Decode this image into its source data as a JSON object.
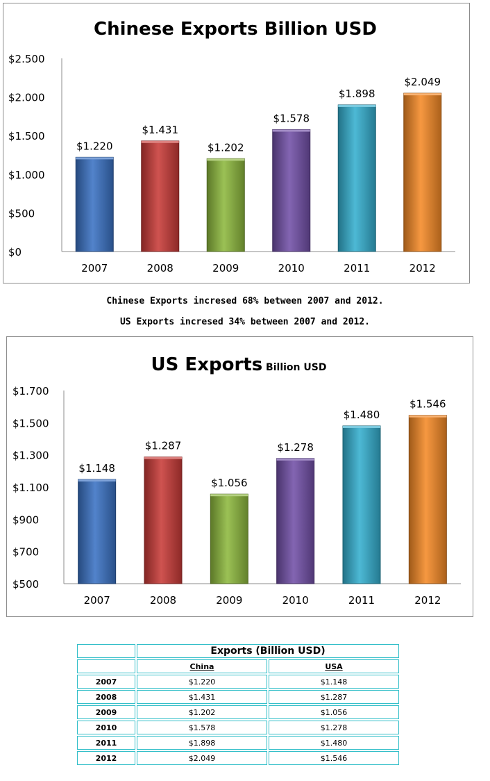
{
  "chart_data": [
    {
      "type": "bar",
      "title": "Chinese Exports Billion USD",
      "title_main": "Chinese Exports Billion USD",
      "title_sub": "",
      "categories": [
        "2007",
        "2008",
        "2009",
        "2010",
        "2011",
        "2012"
      ],
      "values": [
        1220,
        1431,
        1202,
        1578,
        1898,
        2049
      ],
      "value_labels": [
        "$1.220",
        "$1.431",
        "$1.202",
        "$1.578",
        "$1.898",
        "$2.049"
      ],
      "ylim": [
        0,
        2500
      ],
      "yticks": [
        0,
        500,
        1000,
        1500,
        2000,
        2500
      ],
      "ytick_labels": [
        "$0",
        "$500",
        "$1.000",
        "$1.500",
        "$2.000",
        "$2.500"
      ],
      "xlabel": "",
      "ylabel": "",
      "bar_colors": [
        "#3a72c4",
        "#c93b38",
        "#8db83e",
        "#7250a8",
        "#35afcf",
        "#f58a27"
      ]
    },
    {
      "type": "bar",
      "title": "US Exports Billion USD",
      "title_main": "US Exports",
      "title_sub": "Billion USD",
      "categories": [
        "2007",
        "2008",
        "2009",
        "2010",
        "2011",
        "2012"
      ],
      "values": [
        1148,
        1287,
        1056,
        1278,
        1480,
        1546
      ],
      "value_labels": [
        "$1.148",
        "$1.287",
        "$1.056",
        "$1.278",
        "$1.480",
        "$1.546"
      ],
      "ylim": [
        500,
        1700
      ],
      "yticks": [
        500,
        700,
        900,
        1100,
        1300,
        1500,
        1700
      ],
      "ytick_labels": [
        "$500",
        "$700",
        "$900",
        "$1.100",
        "$1.300",
        "$1.500",
        "$1.700"
      ],
      "xlabel": "",
      "ylabel": "",
      "bar_colors": [
        "#3a72c4",
        "#c93b38",
        "#8db83e",
        "#7250a8",
        "#35afcf",
        "#f58a27"
      ]
    }
  ],
  "notes": {
    "china": "Chinese Exports incresed 68% between 2007 and 2012.",
    "us": "US Exports incresed 34% between 2007 and 2012."
  },
  "table": {
    "header": "Exports (Billion USD)",
    "col_china": "China",
    "col_usa": "USA",
    "rows": [
      {
        "year": "2007",
        "china": "$1.220",
        "usa": "$1.148"
      },
      {
        "year": "2008",
        "china": "$1.431",
        "usa": "$1.287"
      },
      {
        "year": "2009",
        "china": "$1.202",
        "usa": "$1.056"
      },
      {
        "year": "2010",
        "china": "$1.578",
        "usa": "$1.278"
      },
      {
        "year": "2011",
        "china": "$1.898",
        "usa": "$1.480"
      },
      {
        "year": "2012",
        "china": "$2.049",
        "usa": "$1.546"
      }
    ]
  }
}
